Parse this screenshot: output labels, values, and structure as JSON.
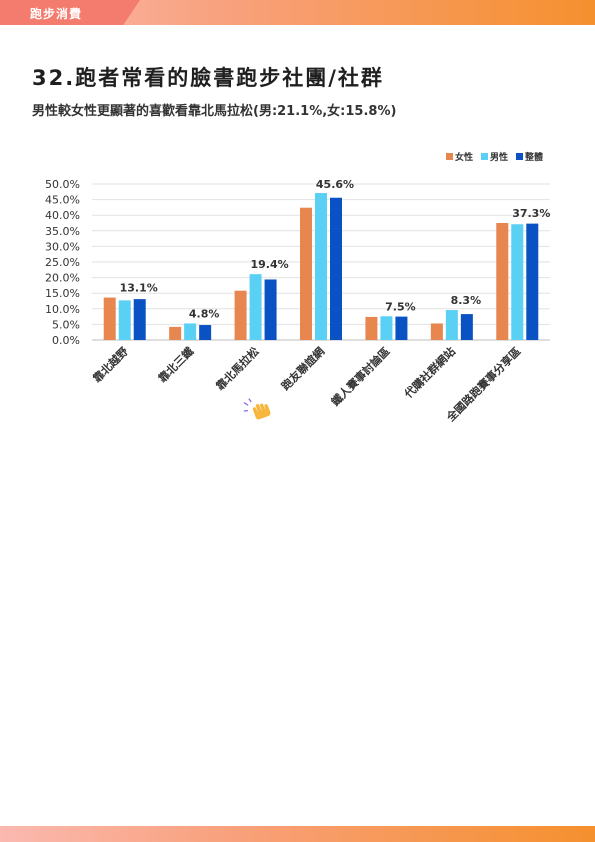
{
  "header": {
    "section_label": "跑步消費"
  },
  "page": {
    "title": "32.跑者常看的臉書跑步社團/社群",
    "subtitle": "男性較女性更顯著的喜歡看靠北馬拉松(男:21.1%,女:15.8%)"
  },
  "chart_data": {
    "type": "bar",
    "title": "",
    "xlabel": "",
    "ylabel": "",
    "ylim": [
      0,
      50
    ],
    "y_ticks": [
      "0.0%",
      "5.0%",
      "10.0%",
      "15.0%",
      "20.0%",
      "25.0%",
      "30.0%",
      "35.0%",
      "40.0%",
      "45.0%",
      "50.0%"
    ],
    "grid": true,
    "legend_position": "top-right",
    "categories": [
      "靠北越野",
      "靠北三鐵",
      "靠北馬拉松",
      "跑友聯誼網",
      "鐵人賽事討論區",
      "代購社群網站",
      "全國路跑賽事分享區"
    ],
    "series": [
      {
        "name": "女性",
        "color": "#e8864f",
        "values": [
          13.6,
          4.2,
          15.8,
          42.4,
          7.4,
          5.3,
          37.5
        ]
      },
      {
        "name": "男性",
        "color": "#5ad0f5",
        "values": [
          12.7,
          5.3,
          21.1,
          47.1,
          7.6,
          9.6,
          37.1
        ]
      },
      {
        "name": "整體",
        "color": "#0a52c4",
        "values": [
          13.1,
          4.8,
          19.4,
          45.6,
          7.5,
          8.3,
          37.3
        ]
      }
    ],
    "data_labels": [
      "13.1%",
      "4.8%",
      "19.4%",
      "45.6%",
      "7.5%",
      "8.3%",
      "37.3%"
    ],
    "highlight_icon": "clapping-hand-icon"
  }
}
